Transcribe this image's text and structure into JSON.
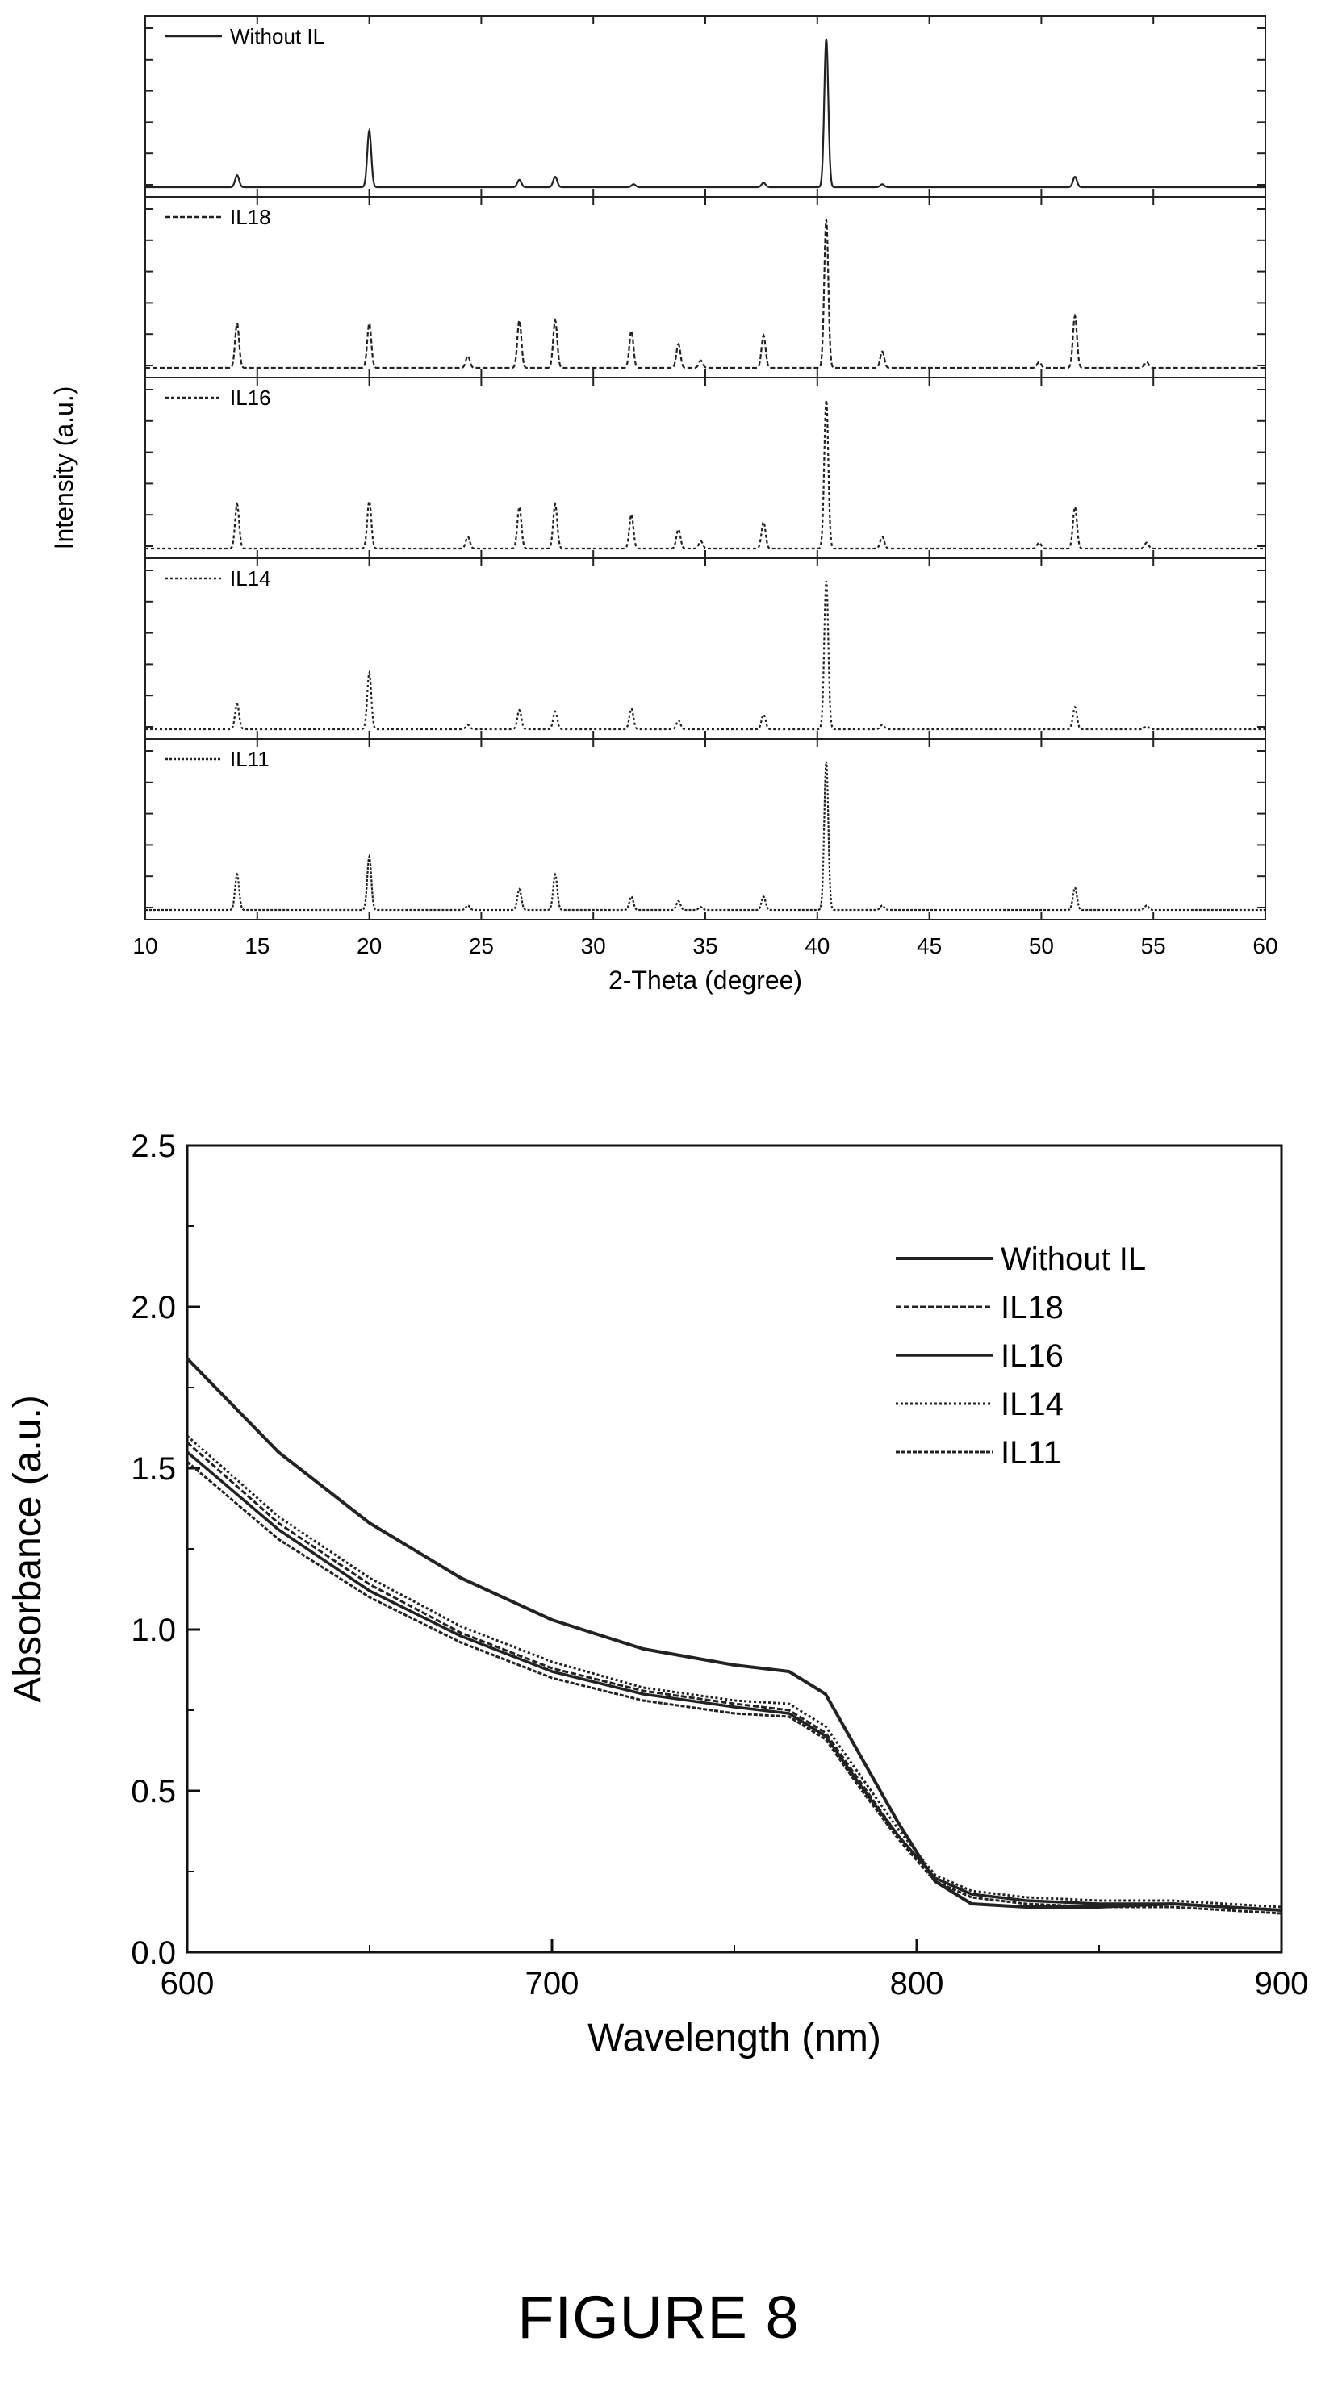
{
  "figure_caption": "FIGURE 8",
  "chart_data": [
    {
      "type": "line",
      "xlabel": "2-Theta (degree)",
      "ylabel": "Intensity (a.u.)",
      "xlim": [
        10,
        60
      ],
      "x_ticks": [
        10,
        15,
        20,
        25,
        30,
        35,
        40,
        45,
        50,
        55,
        60
      ],
      "stacked_panels": true,
      "panels": [
        {
          "name": "Without IL",
          "peaks": [
            [
              14.1,
              0.08
            ],
            [
              20.0,
              0.38
            ],
            [
              26.7,
              0.05
            ],
            [
              28.3,
              0.07
            ],
            [
              31.8,
              0.02
            ],
            [
              37.6,
              0.03
            ],
            [
              40.4,
              1.0
            ],
            [
              42.9,
              0.02
            ],
            [
              51.5,
              0.07
            ]
          ]
        },
        {
          "name": "IL18",
          "peaks": [
            [
              14.1,
              0.3
            ],
            [
              20.0,
              0.3
            ],
            [
              24.4,
              0.08
            ],
            [
              26.7,
              0.32
            ],
            [
              28.3,
              0.32
            ],
            [
              31.7,
              0.25
            ],
            [
              33.8,
              0.16
            ],
            [
              34.8,
              0.05
            ],
            [
              37.6,
              0.22
            ],
            [
              40.4,
              1.0
            ],
            [
              42.9,
              0.11
            ],
            [
              49.9,
              0.04
            ],
            [
              51.5,
              0.35
            ],
            [
              54.7,
              0.04
            ]
          ]
        },
        {
          "name": "IL16",
          "peaks": [
            [
              14.1,
              0.3
            ],
            [
              20.0,
              0.32
            ],
            [
              24.4,
              0.08
            ],
            [
              26.7,
              0.28
            ],
            [
              28.3,
              0.3
            ],
            [
              31.7,
              0.23
            ],
            [
              33.8,
              0.13
            ],
            [
              34.8,
              0.05
            ],
            [
              37.6,
              0.18
            ],
            [
              40.4,
              1.0
            ],
            [
              42.9,
              0.08
            ],
            [
              49.9,
              0.04
            ],
            [
              51.5,
              0.28
            ],
            [
              54.7,
              0.04
            ]
          ]
        },
        {
          "name": "IL14",
          "peaks": [
            [
              14.1,
              0.17
            ],
            [
              20.0,
              0.38
            ],
            [
              24.4,
              0.03
            ],
            [
              26.7,
              0.13
            ],
            [
              28.3,
              0.12
            ],
            [
              31.7,
              0.14
            ],
            [
              33.8,
              0.06
            ],
            [
              37.6,
              0.1
            ],
            [
              40.4,
              1.0
            ],
            [
              42.9,
              0.03
            ],
            [
              51.5,
              0.15
            ],
            [
              54.7,
              0.02
            ]
          ]
        },
        {
          "name": "IL11",
          "peaks": [
            [
              14.1,
              0.24
            ],
            [
              20.0,
              0.36
            ],
            [
              24.4,
              0.03
            ],
            [
              26.7,
              0.14
            ],
            [
              28.3,
              0.24
            ],
            [
              31.7,
              0.09
            ],
            [
              33.8,
              0.06
            ],
            [
              34.8,
              0.02
            ],
            [
              37.6,
              0.09
            ],
            [
              40.4,
              1.0
            ],
            [
              42.9,
              0.03
            ],
            [
              51.5,
              0.15
            ],
            [
              54.7,
              0.03
            ]
          ]
        }
      ]
    },
    {
      "type": "line",
      "xlabel": "Wavelength (nm)",
      "ylabel": "Absorbance (a.u.)",
      "xlim": [
        600,
        900
      ],
      "ylim": [
        0.0,
        2.5
      ],
      "x_ticks": [
        600,
        700,
        800,
        900
      ],
      "x_tick_labels": [
        "600",
        "700",
        "800",
        "900"
      ],
      "y_ticks": [
        0.0,
        0.5,
        1.0,
        1.5,
        2.0,
        2.5
      ],
      "y_tick_labels": [
        "0.0",
        "0.5",
        "1.0",
        "1.5",
        "2.0",
        "2.5"
      ],
      "legend_position": "top-right",
      "series": [
        {
          "name": "Without IL",
          "x": [
            600,
            625,
            650,
            675,
            700,
            725,
            750,
            765,
            775,
            785,
            795,
            805,
            815,
            830,
            850,
            870,
            900
          ],
          "y": [
            1.84,
            1.55,
            1.33,
            1.16,
            1.03,
            0.94,
            0.89,
            0.87,
            0.8,
            0.6,
            0.4,
            0.22,
            0.15,
            0.14,
            0.14,
            0.15,
            0.13
          ]
        },
        {
          "name": "IL18",
          "x": [
            600,
            625,
            650,
            675,
            700,
            725,
            750,
            765,
            775,
            785,
            795,
            805,
            815,
            830,
            850,
            870,
            900
          ],
          "y": [
            1.58,
            1.33,
            1.14,
            0.99,
            0.88,
            0.81,
            0.77,
            0.75,
            0.68,
            0.52,
            0.36,
            0.23,
            0.18,
            0.16,
            0.15,
            0.15,
            0.13
          ]
        },
        {
          "name": "IL16",
          "x": [
            600,
            625,
            650,
            675,
            700,
            725,
            750,
            765,
            775,
            785,
            795,
            805,
            815,
            830,
            850,
            870,
            900
          ],
          "y": [
            1.55,
            1.31,
            1.12,
            0.98,
            0.87,
            0.8,
            0.76,
            0.74,
            0.67,
            0.51,
            0.36,
            0.23,
            0.18,
            0.16,
            0.15,
            0.15,
            0.13
          ]
        },
        {
          "name": "IL14",
          "x": [
            600,
            625,
            650,
            675,
            700,
            725,
            750,
            765,
            775,
            785,
            795,
            805,
            815,
            830,
            850,
            870,
            900
          ],
          "y": [
            1.6,
            1.35,
            1.16,
            1.01,
            0.9,
            0.82,
            0.78,
            0.77,
            0.7,
            0.54,
            0.38,
            0.24,
            0.19,
            0.17,
            0.16,
            0.16,
            0.14
          ]
        },
        {
          "name": "IL11",
          "x": [
            600,
            625,
            650,
            675,
            700,
            725,
            750,
            765,
            775,
            785,
            795,
            805,
            815,
            830,
            850,
            870,
            900
          ],
          "y": [
            1.52,
            1.28,
            1.1,
            0.96,
            0.85,
            0.78,
            0.74,
            0.73,
            0.66,
            0.5,
            0.35,
            0.22,
            0.17,
            0.15,
            0.14,
            0.14,
            0.12
          ]
        }
      ]
    }
  ]
}
